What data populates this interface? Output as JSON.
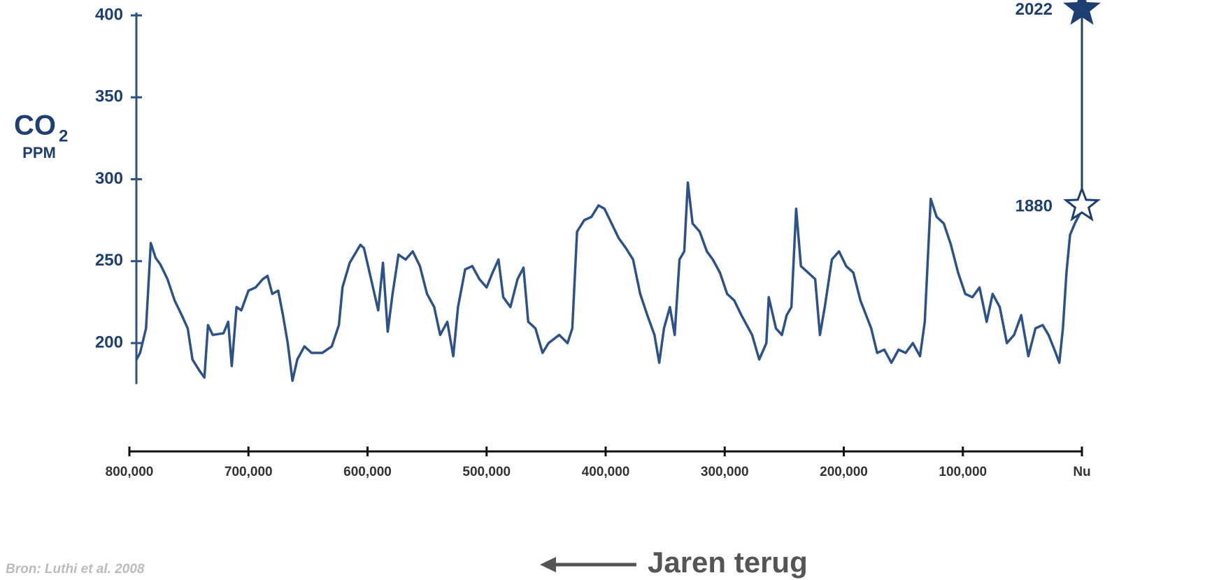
{
  "chart_data": {
    "type": "line",
    "ylabel": "CO",
    "ylabel_sub": "2",
    "yunit": "PPM",
    "xlabel": "Jaren terug",
    "source": "Bron: Luthi et al. 2008",
    "xlim": [
      800000,
      0
    ],
    "xticks": [
      {
        "value": 800000,
        "label": "800,000"
      },
      {
        "value": 700000,
        "label": "700,000"
      },
      {
        "value": 600000,
        "label": "600,000"
      },
      {
        "value": 500000,
        "label": "500,000"
      },
      {
        "value": 400000,
        "label": "400,000"
      },
      {
        "value": 300000,
        "label": "300,000"
      },
      {
        "value": 200000,
        "label": "200,000"
      },
      {
        "value": 100000,
        "label": "100,000"
      },
      {
        "value": 0,
        "label": "Nu"
      }
    ],
    "ylim": [
      175,
      400
    ],
    "yticks": [
      200,
      250,
      300,
      350,
      400
    ],
    "x": [
      794000,
      791000,
      786000,
      782000,
      778000,
      774000,
      768000,
      762000,
      756000,
      751000,
      747000,
      741000,
      737000,
      734000,
      730000,
      721000,
      717000,
      714000,
      710000,
      706000,
      700000,
      694000,
      688000,
      684000,
      680000,
      675000,
      671000,
      667000,
      663000,
      659000,
      653000,
      647000,
      638000,
      630000,
      624000,
      621000,
      615000,
      606000,
      603000,
      597000,
      591000,
      587000,
      583000,
      579000,
      574000,
      568000,
      562000,
      556000,
      550000,
      544000,
      539000,
      533000,
      528000,
      524000,
      518000,
      512000,
      506000,
      500000,
      495000,
      490000,
      486000,
      480000,
      474000,
      469000,
      465000,
      459000,
      453000,
      448000,
      439000,
      432000,
      428000,
      424000,
      418000,
      412000,
      406000,
      401000,
      395000,
      389000,
      383000,
      377000,
      371000,
      365000,
      359000,
      355000,
      351000,
      346000,
      342000,
      338000,
      334000,
      331000,
      327000,
      321000,
      315000,
      310000,
      304000,
      298000,
      292000,
      286000,
      277000,
      271000,
      265000,
      263000,
      257000,
      252000,
      248000,
      244000,
      240000,
      236000,
      230000,
      224000,
      220000,
      216000,
      210000,
      204000,
      198000,
      192000,
      186000,
      177000,
      172000,
      166000,
      160000,
      154000,
      148000,
      142000,
      136000,
      132000,
      127000,
      122000,
      116000,
      110000,
      104000,
      98000,
      92000,
      86000,
      80000,
      75000,
      69000,
      63000,
      57000,
      51000,
      45000,
      39000,
      33000,
      28000,
      22000,
      19000,
      16000,
      13000,
      10000,
      6000,
      1000
    ],
    "series": [
      {
        "color": "#2c5289",
        "values": [
          190,
          194,
          209,
          261,
          252,
          248,
          239,
          226,
          217,
          209,
          190,
          183,
          179,
          211,
          205,
          206,
          213,
          186,
          222,
          220,
          232,
          234,
          239,
          241,
          230,
          232,
          217,
          200,
          177,
          190,
          198,
          194,
          194,
          198,
          211,
          234,
          249,
          260,
          258,
          239,
          220,
          249,
          207,
          230,
          254,
          251,
          256,
          247,
          230,
          222,
          205,
          213,
          192,
          222,
          245,
          247,
          239,
          234,
          243,
          251,
          228,
          222,
          239,
          246,
          213,
          209,
          194,
          200,
          205,
          200,
          209,
          268,
          275,
          277,
          284,
          282,
          273,
          264,
          258,
          251,
          230,
          217,
          205,
          188,
          209,
          222,
          205,
          251,
          256,
          298,
          273,
          268,
          256,
          251,
          243,
          230,
          226,
          217,
          205,
          190,
          200,
          228,
          209,
          205,
          217,
          222,
          282,
          247,
          243,
          239,
          205,
          222,
          251,
          256,
          247,
          243,
          226,
          209,
          194,
          196,
          188,
          196,
          194,
          200,
          192,
          213,
          288,
          277,
          273,
          260,
          243,
          230,
          228,
          234,
          213,
          230,
          222,
          200,
          205,
          217,
          192,
          209,
          211,
          205,
          194,
          188,
          209,
          243,
          266,
          273,
          280
        ]
      }
    ],
    "markers": [
      {
        "label": "2022",
        "value": 404,
        "filled": true
      },
      {
        "label": "1880",
        "value": 284,
        "filled": false
      }
    ]
  }
}
